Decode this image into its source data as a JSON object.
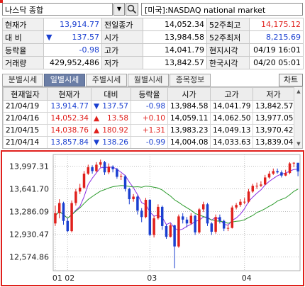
{
  "search": {
    "symbol": "나스닥 종합",
    "market": "[미국]:NASDAQ national market"
  },
  "quote": {
    "rows": [
      [
        {
          "label": "현재가",
          "value": "13,914.77",
          "color": "down"
        },
        {
          "label": "전일종가",
          "value": "14,052.34",
          "color": ""
        },
        {
          "label": "52주최고",
          "value": "14,175.12",
          "color": "up"
        }
      ],
      [
        {
          "label": "대 비",
          "value": "137.57",
          "color": "down",
          "arrow": "▼"
        },
        {
          "label": "시가",
          "value": "13,984.58",
          "color": ""
        },
        {
          "label": "52주최저",
          "value": "8,215.69",
          "color": "down"
        }
      ],
      [
        {
          "label": "등락율",
          "value": "-0.98",
          "color": "down"
        },
        {
          "label": "고가",
          "value": "14,041.79",
          "color": ""
        },
        {
          "label": "현지시각",
          "value": "04/19 16:01",
          "color": ""
        }
      ],
      [
        {
          "label": "거래량",
          "value": "429,952,486",
          "color": ""
        },
        {
          "label": "저가",
          "value": "13,842.57",
          "color": ""
        },
        {
          "label": "한국시각",
          "value": "04/20 05:01",
          "color": ""
        }
      ]
    ]
  },
  "tabs": [
    {
      "label": "분별시세",
      "active": false
    },
    {
      "label": "일별시세",
      "active": true
    },
    {
      "label": "주별시세",
      "active": false
    },
    {
      "label": "월별시세",
      "active": false
    },
    {
      "label": "종목정보",
      "active": false
    }
  ],
  "chart_button": "차트",
  "daily": {
    "headers": [
      "현재일자",
      "현재가",
      "대비",
      "등락율",
      "시가",
      "고가",
      "저가"
    ],
    "rows": [
      {
        "date": "21/04/19",
        "price": "13,914.77",
        "arrow": "▼",
        "change": "137.57",
        "rate": "-0.98",
        "open": "13,984.58",
        "high": "14,041.79",
        "low": "13,842.57",
        "dir": "down"
      },
      {
        "date": "21/04/16",
        "price": "14,052.34",
        "arrow": "▲",
        "change": "13.58",
        "rate": "+0.10",
        "open": "14,059.11",
        "high": "14,062.50",
        "low": "13,977.05",
        "dir": "up"
      },
      {
        "date": "21/04/15",
        "price": "14,038.76",
        "arrow": "▲",
        "change": "180.92",
        "rate": "+1.31",
        "open": "13,983.23",
        "high": "14,049.13",
        "low": "13,970.42",
        "dir": "up"
      },
      {
        "date": "21/04/14",
        "price": "13,857.84",
        "arrow": "▼",
        "change": "138.26",
        "rate": "-0.99",
        "open": "14,004.08",
        "high": "14,033.63",
        "low": "13,839.04",
        "dir": "down"
      }
    ]
  },
  "chart_data": {
    "type": "candlestick",
    "ylim": [
      12360,
      14180
    ],
    "ytick_values": [
      13997.31,
      13641.7,
      13286.09,
      12930.47,
      12574.86
    ],
    "ytick_labels": [
      "13,997.31",
      "13,641.70",
      "13,286.09",
      "12,930.47",
      "12,574.86"
    ],
    "xtick_labels": [
      {
        "label": "01",
        "index": 0
      },
      {
        "label": "02",
        "index": 3
      },
      {
        "label": "03",
        "index": 23
      },
      {
        "label": "04",
        "index": 46
      }
    ],
    "colors": {
      "up": "#e0201c",
      "down": "#1a3fd0",
      "ma_short": "#8a2be2",
      "ma_long": "#2a9a2a",
      "grid": "#c0c0c0"
    },
    "closes": [
      13220,
      13360,
      13130,
      13020,
      13440,
      13590,
      13660,
      13880,
      13980,
      13930,
      14010,
      14060,
      13900,
      13990,
      13960,
      13830,
      13830,
      13640,
      13480,
      13510,
      13300,
      13200,
      13470,
      12920,
      13180,
      13360,
      13060,
      12890,
      13070,
      12740,
      13210,
      13160,
      13100,
      13220,
      12960,
      13320,
      13400,
      13100,
      12970,
      13200,
      13140,
      13020,
      13030,
      13350,
      13390,
      13440,
      13440,
      13600,
      13690,
      13690,
      13710,
      13820,
      13880,
      13920,
      13900,
      13850,
      13890,
      14040,
      14050,
      13915
    ],
    "candles": [
      [
        13100,
        13260,
        13380,
        13060
      ],
      [
        13260,
        13420,
        13480,
        13180
      ],
      [
        13420,
        13140,
        13440,
        13080
      ],
      [
        13140,
        12980,
        13180,
        12960
      ],
      [
        12980,
        13420,
        13460,
        12960
      ],
      [
        13420,
        13600,
        13640,
        13380
      ],
      [
        13600,
        13660,
        13720,
        13560
      ],
      [
        13660,
        13880,
        13920,
        13640
      ],
      [
        13880,
        13980,
        14020,
        13860
      ],
      [
        13980,
        13920,
        14010,
        13880
      ],
      [
        13920,
        14020,
        14060,
        13900
      ],
      [
        14020,
        14060,
        14100,
        13980
      ],
      [
        14060,
        13900,
        14080,
        13860
      ],
      [
        13900,
        13990,
        14040,
        13870
      ],
      [
        13990,
        13950,
        14010,
        13900
      ],
      [
        13950,
        13830,
        13970,
        13800
      ],
      [
        13830,
        13840,
        13880,
        13780
      ],
      [
        13840,
        13640,
        13860,
        13600
      ],
      [
        13640,
        13480,
        13660,
        13400
      ],
      [
        13480,
        13520,
        13560,
        13440
      ],
      [
        13520,
        13300,
        13540,
        13240
      ],
      [
        13300,
        13200,
        13340,
        13120
      ],
      [
        13200,
        13470,
        13500,
        13180
      ],
      [
        13470,
        12920,
        13480,
        12900
      ],
      [
        12920,
        13180,
        13220,
        12880
      ],
      [
        13180,
        13360,
        13400,
        13160
      ],
      [
        13360,
        13060,
        13380,
        13000
      ],
      [
        13060,
        12890,
        13080,
        12860
      ],
      [
        12890,
        13070,
        13100,
        12880
      ],
      [
        13070,
        12740,
        13080,
        12400
      ],
      [
        12740,
        13210,
        13240,
        12720
      ],
      [
        13210,
        13160,
        13260,
        13100
      ],
      [
        13160,
        13100,
        13200,
        13040
      ],
      [
        13100,
        13220,
        13260,
        13080
      ],
      [
        13220,
        12960,
        13240,
        12920
      ],
      [
        12960,
        13320,
        13340,
        12940
      ],
      [
        13320,
        13400,
        13440,
        13280
      ],
      [
        13400,
        13100,
        13420,
        13060
      ],
      [
        13100,
        12970,
        13120,
        12920
      ],
      [
        12970,
        13200,
        13240,
        12940
      ],
      [
        13200,
        13140,
        13240,
        13100
      ],
      [
        13140,
        13020,
        13160,
        12980
      ],
      [
        13020,
        13030,
        13080,
        12980
      ],
      [
        13030,
        13350,
        13380,
        13020
      ],
      [
        13350,
        13390,
        13420,
        13320
      ],
      [
        13390,
        13440,
        13480,
        13360
      ],
      [
        13440,
        13440,
        13500,
        13400
      ],
      [
        13440,
        13600,
        13640,
        13420
      ],
      [
        13600,
        13690,
        13720,
        13580
      ],
      [
        13690,
        13690,
        13740,
        13640
      ],
      [
        13690,
        13710,
        13760,
        13670
      ],
      [
        13710,
        13820,
        13860,
        13700
      ],
      [
        13820,
        13880,
        13920,
        13800
      ],
      [
        13880,
        13920,
        13960,
        13860
      ],
      [
        13920,
        13900,
        13960,
        13880
      ],
      [
        13900,
        13850,
        13930,
        13820
      ],
      [
        13850,
        13890,
        13940,
        13840
      ],
      [
        13890,
        14040,
        14060,
        13870
      ],
      [
        14040,
        14050,
        14060,
        13980
      ],
      [
        14050,
        13915,
        14040,
        13840
      ]
    ]
  }
}
